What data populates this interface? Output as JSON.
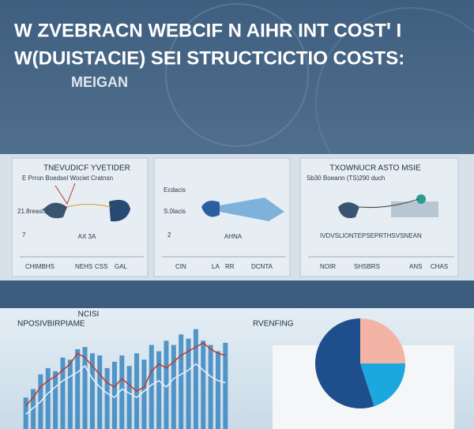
{
  "header": {
    "lines": [
      "W ZVEBRACN WEBCIF N  AIHR INT COSTꞌ I",
      "W(DUISTACIE) SEI STRUCTCICTIO COSTS:"
    ],
    "subtitle": "MEIGAN"
  },
  "panels": [
    {
      "title": "TNEVUDICF YVETIDER",
      "legend": "E Prron    Boedsel    Wociet  Cratnsn",
      "labels": [
        "21.8reasfs",
        "7",
        "AX 3A",
        "CHIMBHS",
        "NEHS",
        "CSS",
        "GAL"
      ]
    },
    {
      "title": "",
      "legend": "",
      "labels": [
        "Ecdacis",
        "S.0lacis",
        "2",
        "AHNA",
        "CIN",
        "LA",
        "RR",
        "DCNTA"
      ]
    },
    {
      "title": "TXOWNUCR ASTO MSIE",
      "legend": "Sb30   Boeann   (TS)290   duch",
      "labels": [
        "IVDVSLIONTEPSEPRTHSVSNEAN",
        "NOIR",
        "SHSBRS",
        "ANS",
        "CHAS"
      ]
    }
  ],
  "chart_data": [
    {
      "type": "bar",
      "title": "NCISI",
      "subtitle": "NPOSIVBIRPIAME",
      "ylim": [
        0,
        100
      ],
      "series": [
        {
          "mark": "bar",
          "color": "#3a86c0",
          "values": [
            30,
            38,
            52,
            58,
            55,
            68,
            66,
            76,
            78,
            72,
            70,
            58,
            64,
            70,
            60,
            72,
            66,
            80,
            74,
            84,
            80,
            90,
            86,
            95,
            84,
            80,
            74,
            82
          ]
        },
        {
          "mark": "line",
          "color": "#c0392b",
          "values": [
            22,
            30,
            40,
            46,
            50,
            56,
            62,
            72,
            68,
            60,
            52,
            44,
            40,
            48,
            42,
            36,
            40,
            55,
            62,
            58,
            64,
            70,
            74,
            78,
            82,
            76,
            72,
            70
          ]
        },
        {
          "mark": "line",
          "color": "#e8f1f8",
          "values": [
            14,
            20,
            26,
            34,
            40,
            46,
            50,
            54,
            60,
            48,
            40,
            34,
            30,
            38,
            34,
            30,
            36,
            42,
            46,
            40,
            48,
            52,
            56,
            62,
            56,
            50,
            46,
            44
          ]
        }
      ]
    },
    {
      "type": "pie",
      "title": "RVENFING",
      "values": [
        25,
        20,
        55
      ],
      "colors": [
        "#f3b4a6",
        "#1aa8de",
        "#1f4e8c"
      ]
    }
  ]
}
